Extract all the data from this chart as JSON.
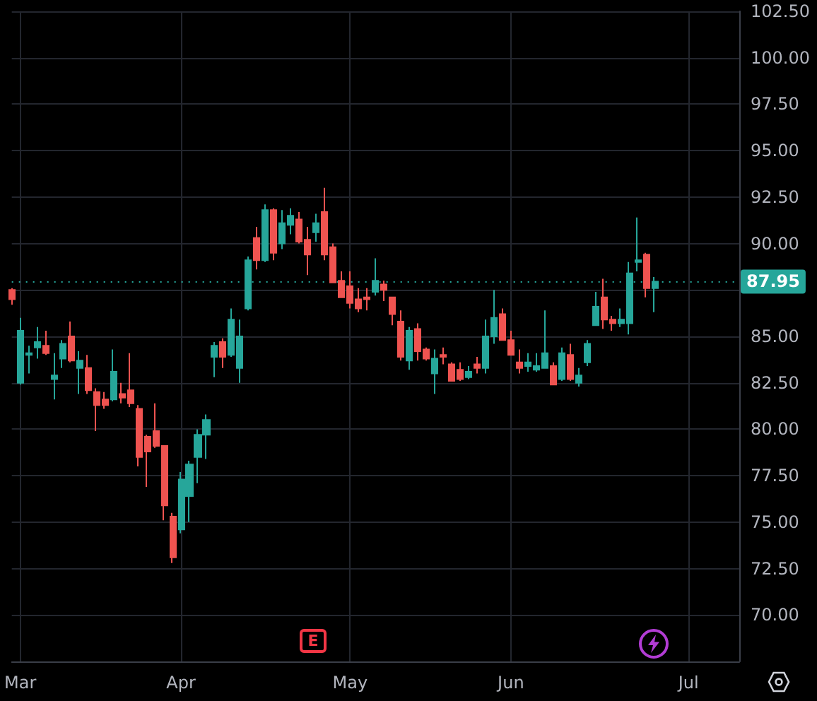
{
  "chart_data": {
    "type": "candlestick",
    "categories": [
      null,
      "Mar",
      null,
      null,
      null,
      null,
      null,
      null,
      null,
      null,
      null,
      null,
      null,
      null,
      null,
      null,
      null,
      null,
      null,
      null,
      "Apr",
      null,
      null,
      null,
      null,
      null,
      null,
      null,
      null,
      null,
      null,
      null,
      null,
      null,
      null,
      null,
      null,
      null,
      null,
      null,
      "May",
      null,
      null,
      null,
      null,
      null,
      null,
      null,
      null,
      null,
      null,
      null,
      null,
      null,
      null,
      null,
      null,
      null,
      null,
      "Jun",
      null,
      null,
      null,
      null,
      null,
      null,
      null,
      null,
      null,
      null,
      null,
      null,
      null,
      null,
      null,
      null,
      null,
      null,
      null,
      null,
      "Jul",
      null,
      null,
      null,
      null,
      null,
      null
    ],
    "ohlc": [
      [
        87.5,
        87.6,
        86.7,
        87.0
      ],
      [
        82.5,
        86.0,
        82.4,
        85.3
      ],
      [
        84.0,
        84.5,
        83.0,
        84.1
      ],
      [
        84.4,
        85.5,
        83.8,
        84.7
      ],
      [
        84.5,
        85.3,
        84.0,
        84.1
      ],
      [
        82.7,
        84.1,
        81.6,
        82.9
      ],
      [
        83.8,
        84.8,
        83.3,
        84.6
      ],
      [
        85.0,
        85.8,
        83.6,
        83.7
      ],
      [
        83.3,
        84.2,
        81.9,
        83.7
      ],
      [
        83.3,
        84.0,
        81.9,
        82.1
      ],
      [
        82.0,
        82.2,
        79.9,
        81.3
      ],
      [
        81.6,
        82.0,
        81.1,
        81.3
      ],
      [
        81.6,
        84.3,
        81.5,
        83.1
      ],
      [
        81.9,
        82.5,
        81.4,
        81.7
      ],
      [
        82.1,
        84.1,
        81.2,
        81.4
      ],
      [
        81.1,
        81.3,
        78.0,
        78.5
      ],
      [
        79.6,
        79.7,
        76.9,
        78.8
      ],
      [
        79.9,
        81.4,
        79.0,
        79.1
      ],
      [
        79.1,
        79.1,
        75.1,
        75.9
      ],
      [
        75.3,
        75.5,
        72.8,
        73.1
      ],
      [
        74.6,
        77.7,
        74.4,
        77.3
      ],
      [
        76.4,
        78.3,
        75.0,
        78.1
      ],
      [
        78.5,
        80.0,
        77.1,
        79.7
      ],
      [
        79.7,
        80.8,
        78.4,
        80.5
      ],
      [
        83.9,
        84.7,
        82.8,
        84.5
      ],
      [
        84.7,
        84.9,
        83.3,
        83.9
      ],
      [
        84.0,
        86.5,
        83.9,
        85.9
      ],
      [
        83.3,
        85.9,
        82.5,
        85.0
      ],
      [
        86.5,
        89.3,
        86.4,
        89.1
      ],
      [
        90.3,
        90.9,
        88.6,
        89.1
      ],
      [
        89.1,
        92.1,
        89.0,
        91.8
      ],
      [
        91.8,
        91.9,
        89.1,
        89.5
      ],
      [
        90.0,
        91.8,
        89.7,
        91.1
      ],
      [
        91.0,
        91.9,
        90.5,
        91.5
      ],
      [
        91.3,
        91.7,
        90.0,
        90.1
      ],
      [
        90.2,
        90.9,
        88.3,
        89.4
      ],
      [
        90.6,
        91.6,
        90.1,
        91.1
      ],
      [
        91.7,
        93.0,
        89.1,
        89.4
      ],
      [
        89.8,
        90.0,
        87.9,
        87.9
      ],
      [
        88.0,
        88.5,
        87.1,
        87.1
      ],
      [
        87.7,
        88.5,
        86.5,
        86.8
      ],
      [
        87.0,
        87.6,
        86.3,
        86.5
      ],
      [
        87.1,
        87.6,
        86.4,
        87.0
      ],
      [
        87.4,
        89.2,
        87.2,
        88.0
      ],
      [
        87.8,
        88.0,
        86.9,
        87.5
      ],
      [
        87.1,
        87.1,
        85.6,
        86.2
      ],
      [
        85.8,
        86.4,
        83.7,
        83.9
      ],
      [
        83.7,
        85.5,
        83.2,
        85.3
      ],
      [
        85.4,
        85.7,
        83.7,
        84.2
      ],
      [
        84.3,
        84.4,
        83.7,
        83.8
      ],
      [
        83.0,
        84.3,
        81.9,
        83.8
      ],
      [
        84.0,
        84.4,
        83.5,
        83.9
      ],
      [
        83.5,
        83.6,
        82.6,
        82.6
      ],
      [
        83.2,
        83.6,
        82.6,
        82.7
      ],
      [
        82.8,
        83.4,
        82.7,
        83.1
      ],
      [
        83.5,
        83.9,
        83.0,
        83.3
      ],
      [
        83.3,
        85.9,
        83.0,
        85.0
      ],
      [
        85.0,
        87.5,
        84.6,
        86.0
      ],
      [
        86.2,
        86.5,
        84.8,
        84.8
      ],
      [
        84.8,
        85.3,
        84.0,
        84.0
      ],
      [
        83.6,
        84.3,
        83.0,
        83.3
      ],
      [
        83.4,
        84.1,
        83.1,
        83.6
      ],
      [
        83.2,
        84.1,
        83.1,
        83.4
      ],
      [
        83.3,
        86.4,
        83.3,
        84.1
      ],
      [
        83.4,
        83.6,
        82.4,
        82.4
      ],
      [
        82.7,
        84.4,
        82.6,
        84.1
      ],
      [
        84.0,
        84.6,
        82.6,
        82.7
      ],
      [
        82.5,
        83.3,
        82.3,
        82.9
      ],
      [
        83.6,
        84.8,
        83.4,
        84.6
      ],
      [
        85.6,
        87.4,
        85.6,
        86.6
      ],
      [
        87.1,
        88.1,
        85.4,
        85.9
      ],
      [
        85.9,
        86.1,
        85.3,
        85.7
      ],
      [
        85.7,
        86.5,
        85.5,
        85.9
      ],
      [
        85.7,
        89.0,
        85.1,
        88.4
      ],
      [
        89.0,
        91.4,
        88.5,
        89.1
      ],
      [
        89.4,
        89.5,
        87.1,
        87.6
      ],
      [
        87.6,
        88.2,
        86.3,
        87.95
      ],
      null,
      null,
      null,
      null,
      null,
      null,
      null,
      null,
      null,
      null
    ],
    "colors": [
      "#ef5350",
      "#26a69a",
      "#26a69a",
      "#26a69a",
      "#ef5350",
      "#26a69a",
      "#26a69a",
      "#ef5350",
      "#26a69a",
      "#ef5350",
      "#ef5350",
      "#ef5350",
      "#26a69a",
      "#ef5350",
      "#ef5350",
      "#ef5350",
      "#ef5350",
      "#ef5350",
      "#ef5350",
      "#ef5350",
      "#26a69a",
      "#26a69a",
      "#26a69a",
      "#26a69a",
      "#26a69a",
      "#ef5350",
      "#26a69a",
      "#26a69a",
      "#26a69a",
      "#ef5350",
      "#26a69a",
      "#ef5350",
      "#26a69a",
      "#26a69a",
      "#ef5350",
      "#ef5350",
      "#26a69a",
      "#ef5350",
      "#ef5350",
      "#ef5350",
      "#ef5350",
      "#ef5350",
      "#ef5350",
      "#26a69a",
      "#ef5350",
      "#ef5350",
      "#ef5350",
      "#26a69a",
      "#ef5350",
      "#ef5350",
      "#26a69a",
      "#ef5350",
      "#ef5350",
      "#ef5350",
      "#26a69a",
      "#ef5350",
      "#26a69a",
      "#26a69a",
      "#ef5350",
      "#ef5350",
      "#ef5350",
      "#26a69a",
      "#26a69a",
      "#26a69a",
      "#ef5350",
      "#26a69a",
      "#ef5350",
      "#26a69a",
      "#26a69a",
      "#26a69a",
      "#ef5350",
      "#ef5350",
      "#26a69a",
      "#26a69a",
      "#26a69a",
      "#ef5350",
      "#26a69a",
      null,
      null,
      null,
      null,
      null,
      null,
      null,
      null,
      null,
      null
    ],
    "ylim": [
      67.5,
      102.5
    ],
    "yticks": [
      {
        "value": 70,
        "label": "70.00"
      },
      {
        "value": 72.5,
        "label": "72.50"
      },
      {
        "value": 75,
        "label": "75.00"
      },
      {
        "value": 77.5,
        "label": "77.50"
      },
      {
        "value": 80,
        "label": "80.00"
      },
      {
        "value": 82.5,
        "label": "82.50"
      },
      {
        "value": 85,
        "label": "85.00"
      },
      {
        "value": 87.5,
        "label": null
      },
      {
        "value": 90,
        "label": "90.00"
      },
      {
        "value": 92.5,
        "label": "92.50"
      },
      {
        "value": 95,
        "label": "95.00"
      },
      {
        "value": 97.5,
        "label": "97.50"
      },
      {
        "value": 100,
        "label": "100.00"
      },
      {
        "value": 102.5,
        "label": "102.50"
      }
    ],
    "ref_lines": [
      {
        "axis": "y",
        "value": 87.95,
        "label": "87.95",
        "color": "#26a69a",
        "line_style": "dotted"
      }
    ],
    "annotations": [
      "E"
    ],
    "grid": true
  }
}
